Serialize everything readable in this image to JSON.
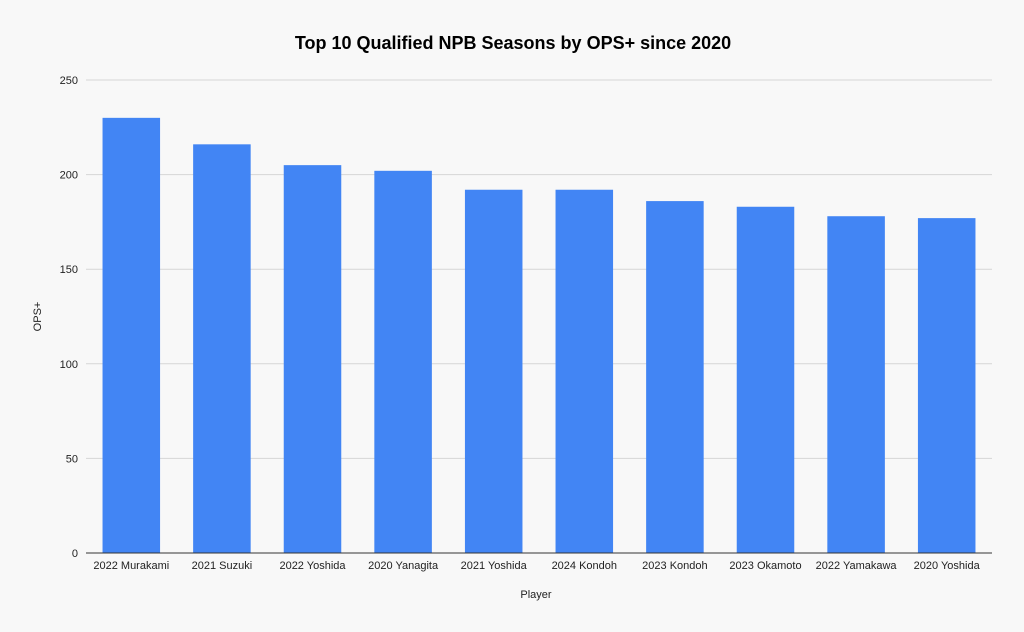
{
  "chart_data": {
    "type": "bar",
    "title": "Top 10 Qualified NPB Seasons by OPS+ since 2020",
    "xlabel": "Player",
    "ylabel": "OPS+",
    "ylim": [
      0,
      250
    ],
    "yticks": [
      0,
      50,
      100,
      150,
      200,
      250
    ],
    "grid": true,
    "legend": "none",
    "categories": [
      "2022 Murakami",
      "2021 Suzuki",
      "2022 Yoshida",
      "2020 Yanagita",
      "2021 Yoshida",
      "2024 Kondoh",
      "2023 Kondoh",
      "2023 Okamoto",
      "2022 Yamakawa",
      "2020 Yoshida"
    ],
    "values": [
      230,
      216,
      205,
      202,
      192,
      192,
      186,
      183,
      178,
      177
    ],
    "bar_color": "#4285f4"
  }
}
